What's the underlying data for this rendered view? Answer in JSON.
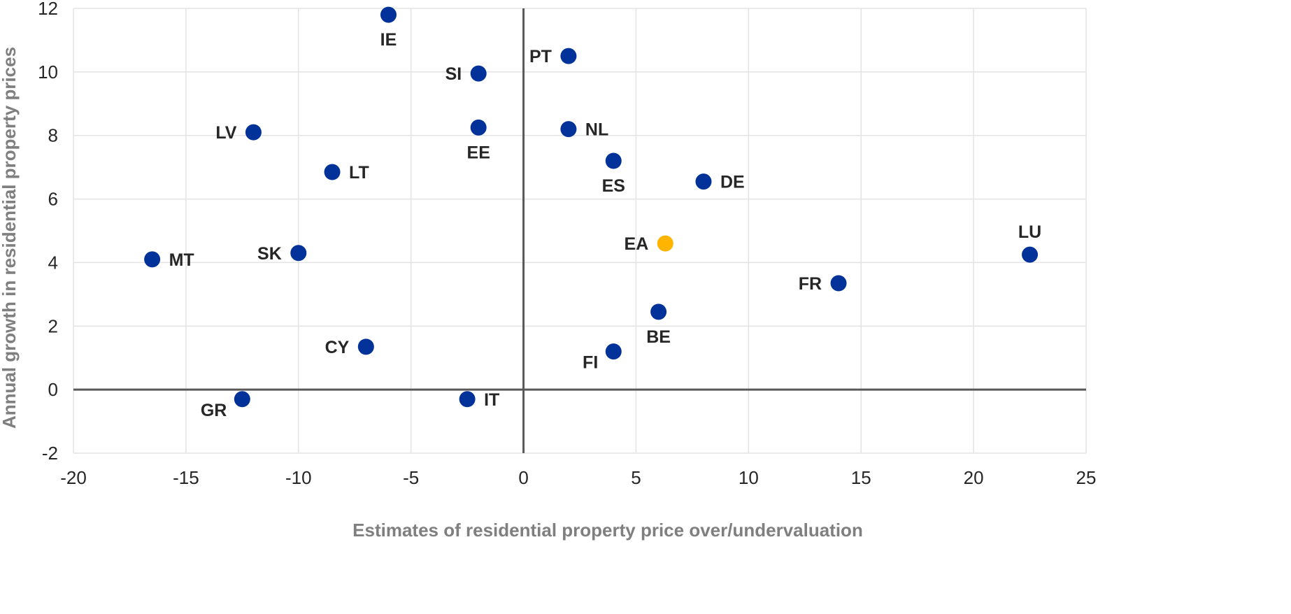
{
  "chart_data": {
    "type": "scatter",
    "title": "",
    "xlabel": "Estimates of residential property price over/undervaluation",
    "ylabel": "Annual growth in residential property prices",
    "xlim": [
      -20,
      25
    ],
    "ylim": [
      -2,
      12
    ],
    "x_ticks": [
      -20,
      -15,
      -10,
      -5,
      0,
      5,
      10,
      15,
      20,
      25
    ],
    "y_ticks": [
      -2,
      0,
      2,
      4,
      6,
      8,
      10,
      12
    ],
    "grid": true,
    "legend": "none",
    "colors": {
      "country": "#003299",
      "euro_area": "#ffb400",
      "zero_line": "#595959",
      "grid": "#e3e3e3"
    },
    "points": [
      {
        "label": "IE",
        "x": -6.0,
        "y": 11.8,
        "label_pos": "below"
      },
      {
        "label": "PT",
        "x": 2.0,
        "y": 10.5,
        "label_pos": "left"
      },
      {
        "label": "SI",
        "x": -2.0,
        "y": 9.95,
        "label_pos": "left"
      },
      {
        "label": "LV",
        "x": -12.0,
        "y": 8.1,
        "label_pos": "left"
      },
      {
        "label": "EE",
        "x": -2.0,
        "y": 8.25,
        "label_pos": "below"
      },
      {
        "label": "NL",
        "x": 2.0,
        "y": 8.2,
        "label_pos": "right"
      },
      {
        "label": "LT",
        "x": -8.5,
        "y": 6.85,
        "label_pos": "right"
      },
      {
        "label": "ES",
        "x": 4.0,
        "y": 7.2,
        "label_pos": "below"
      },
      {
        "label": "DE",
        "x": 8.0,
        "y": 6.55,
        "label_pos": "right"
      },
      {
        "label": "EA",
        "x": 6.3,
        "y": 4.6,
        "label_pos": "left",
        "highlight": true
      },
      {
        "label": "LU",
        "x": 22.5,
        "y": 4.25,
        "label_pos": "above"
      },
      {
        "label": "MT",
        "x": -16.5,
        "y": 4.1,
        "label_pos": "right"
      },
      {
        "label": "SK",
        "x": -10.0,
        "y": 4.3,
        "label_pos": "left"
      },
      {
        "label": "FR",
        "x": 14.0,
        "y": 3.35,
        "label_pos": "left"
      },
      {
        "label": "BE",
        "x": 6.0,
        "y": 2.45,
        "label_pos": "below"
      },
      {
        "label": "CY",
        "x": -7.0,
        "y": 1.35,
        "label_pos": "left"
      },
      {
        "label": "FI",
        "x": 4.0,
        "y": 1.2,
        "label_pos": "left-below"
      },
      {
        "label": "GR",
        "x": -12.5,
        "y": -0.3,
        "label_pos": "left-below"
      },
      {
        "label": "IT",
        "x": -2.5,
        "y": -0.3,
        "label_pos": "right"
      }
    ]
  }
}
